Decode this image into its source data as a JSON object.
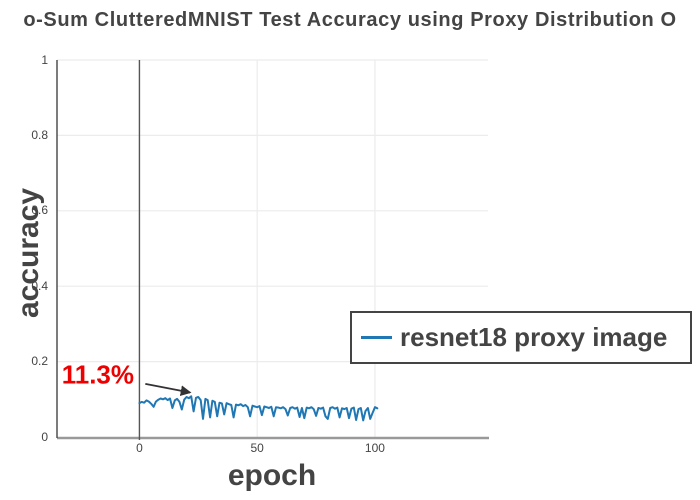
{
  "chart_data": {
    "type": "line",
    "title": "o-Sum ClutteredMNIST Test Accuracy using Proxy Distribution O",
    "xlabel": "epoch",
    "ylabel": "accuracy",
    "xlim": [
      -35,
      148
    ],
    "ylim": [
      0,
      1
    ],
    "xticks": [
      0,
      50,
      100
    ],
    "yticks": [
      0,
      0.2,
      0.4,
      0.6,
      0.8,
      1
    ],
    "grid": true,
    "zero_vline_x": 0,
    "legend": {
      "position": "overlay-bottom-right",
      "entries": [
        {
          "label": "resnet18 proxy image",
          "color": "#1f77b4"
        }
      ]
    },
    "annotation": {
      "text": "11.3%",
      "color": "#ee0000",
      "text_xy": [
        -33,
        0.165
      ],
      "arrow_start_xy": [
        2.5,
        0.141
      ],
      "arrow_end_xy": [
        21.5,
        0.118
      ]
    },
    "series": [
      {
        "name": "resnet18 proxy image",
        "color": "#1f77b4",
        "x": [
          0,
          1,
          2,
          3,
          4,
          5,
          6,
          7,
          8,
          9,
          10,
          11,
          12,
          13,
          14,
          15,
          16,
          17,
          18,
          19,
          20,
          21,
          22,
          23,
          24,
          25,
          26,
          27,
          28,
          29,
          30,
          31,
          32,
          33,
          34,
          35,
          36,
          37,
          38,
          39,
          40,
          41,
          42,
          43,
          44,
          45,
          46,
          47,
          48,
          49,
          50,
          51,
          52,
          53,
          54,
          55,
          56,
          57,
          58,
          59,
          60,
          61,
          62,
          63,
          64,
          65,
          66,
          67,
          68,
          69,
          70,
          71,
          72,
          73,
          74,
          75,
          76,
          77,
          78,
          79,
          80,
          81,
          82,
          83,
          84,
          85,
          86,
          87,
          88,
          89,
          90,
          91,
          92,
          93,
          94,
          95,
          96,
          97,
          98,
          99,
          100,
          101
        ],
        "y": [
          0.09,
          0.093,
          0.091,
          0.097,
          0.094,
          0.088,
          0.08,
          0.094,
          0.099,
          0.102,
          0.1,
          0.103,
          0.098,
          0.102,
          0.077,
          0.097,
          0.101,
          0.093,
          0.073,
          0.099,
          0.106,
          0.103,
          0.108,
          0.068,
          0.104,
          0.106,
          0.098,
          0.048,
          0.101,
          0.098,
          0.052,
          0.096,
          0.093,
          0.055,
          0.091,
          0.089,
          0.06,
          0.09,
          0.087,
          0.085,
          0.052,
          0.086,
          0.084,
          0.087,
          0.082,
          0.085,
          0.079,
          0.055,
          0.083,
          0.081,
          0.079,
          0.082,
          0.058,
          0.081,
          0.079,
          0.077,
          0.08,
          0.055,
          0.079,
          0.078,
          0.076,
          0.079,
          0.074,
          0.057,
          0.077,
          0.079,
          0.075,
          0.078,
          0.053,
          0.077,
          0.05,
          0.078,
          0.076,
          0.079,
          0.074,
          0.056,
          0.077,
          0.075,
          0.078,
          0.055,
          0.048,
          0.077,
          0.079,
          0.075,
          0.078,
          0.052,
          0.076,
          0.074,
          0.077,
          0.05,
          0.075,
          0.078,
          0.045,
          0.074,
          0.077,
          0.044,
          0.069,
          0.077,
          0.048,
          0.064,
          0.079,
          0.076
        ]
      }
    ],
    "colors": {
      "text": "#444444",
      "grid": "#ececec",
      "xaxis_line": "#999999",
      "yaxis_line": "#444444",
      "vline": "#555555",
      "arrow": "#333333",
      "legend_border": "#444444"
    }
  }
}
